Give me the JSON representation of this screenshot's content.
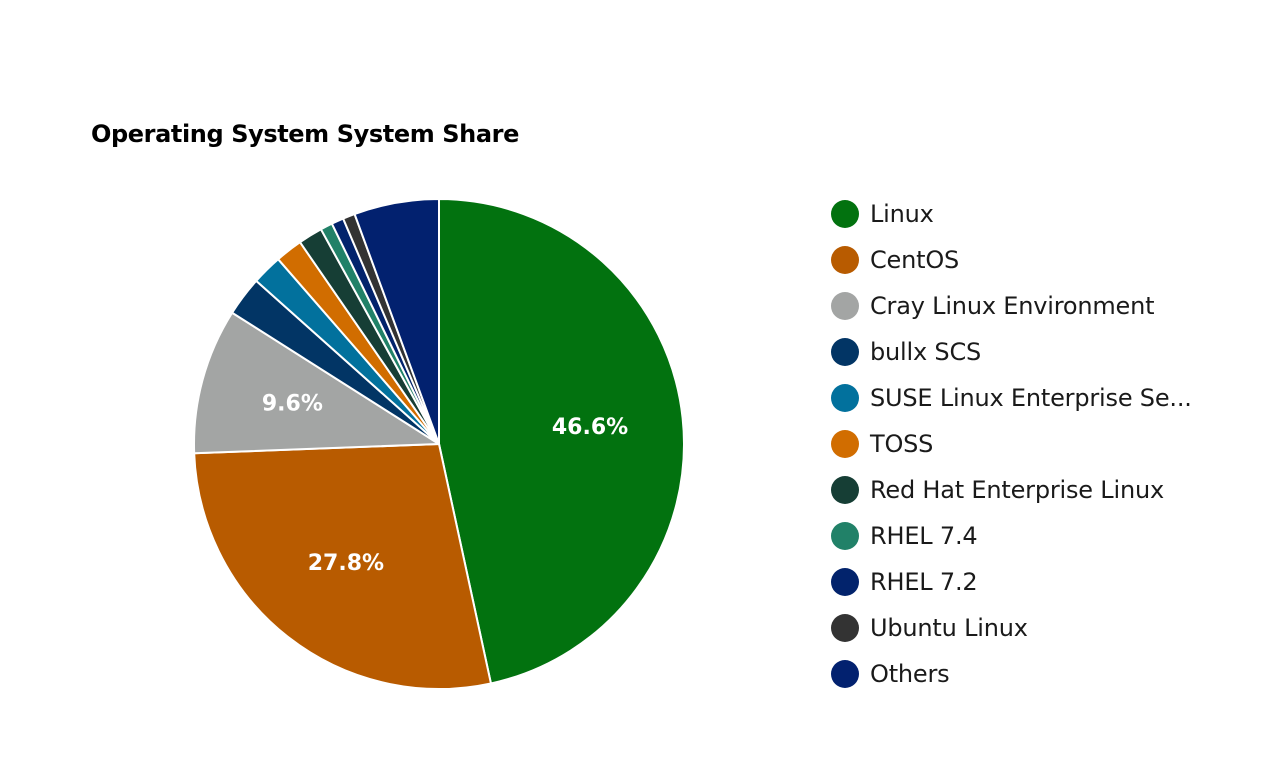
{
  "chart_data": {
    "type": "pie",
    "title": "Operating System System Share",
    "slices": [
      {
        "name": "Linux",
        "value": 46.6,
        "color": "#02720f",
        "label": "46.6%"
      },
      {
        "name": "CentOS",
        "value": 27.8,
        "color": "#b85b00",
        "label": "27.8%"
      },
      {
        "name": "Cray Linux Environment",
        "value": 9.6,
        "color": "#a3a5a4",
        "label": "9.6%"
      },
      {
        "name": "bullx SCS",
        "value": 2.6,
        "color": "#023565"
      },
      {
        "name": "SUSE Linux Enterprise Se...",
        "value": 2.0,
        "color": "#02719d"
      },
      {
        "name": "TOSS",
        "value": 1.8,
        "color": "#d16d00"
      },
      {
        "name": "Red Hat Enterprise Linux",
        "value": 1.6,
        "color": "#163e35"
      },
      {
        "name": "RHEL 7.4",
        "value": 0.8,
        "color": "#218168"
      },
      {
        "name": "RHEL 7.2",
        "value": 0.8,
        "color": "#02236c"
      },
      {
        "name": "Ubuntu Linux",
        "value": 0.8,
        "color": "#333333"
      },
      {
        "name": "Others",
        "value": 5.6,
        "color": "#02216f"
      }
    ],
    "legend_position": "right"
  }
}
